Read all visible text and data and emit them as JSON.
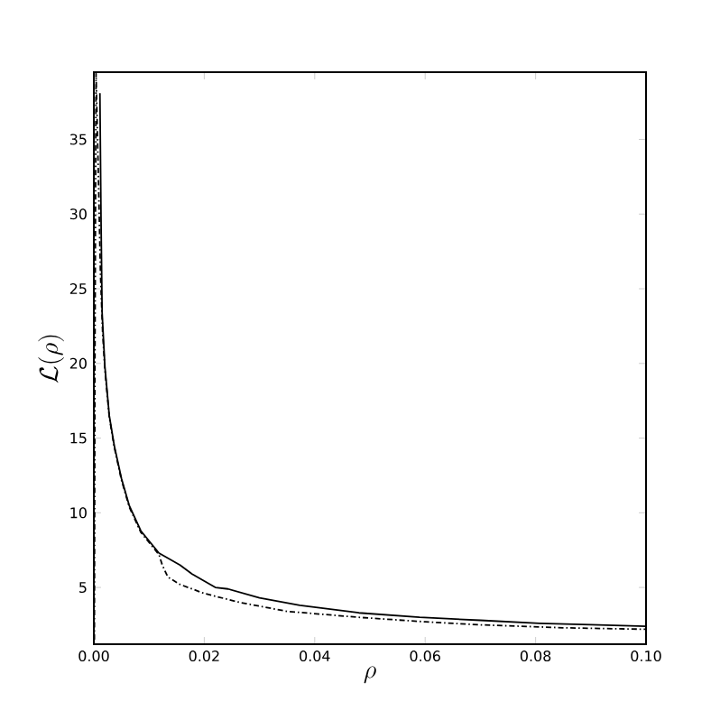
{
  "chart_data": {
    "type": "line",
    "xlabel": "\\rho",
    "ylabel": "\\mathcal{L}(\\rho)",
    "xlim": [
      0,
      0.1
    ],
    "ylim": [
      1.2,
      39.5
    ],
    "xticks": [
      {
        "value": 0,
        "label": "0.00"
      },
      {
        "value": 0.02,
        "label": "0.02"
      },
      {
        "value": 0.04,
        "label": "0.04"
      },
      {
        "value": 0.06,
        "label": "0.06"
      },
      {
        "value": 0.08,
        "label": "0.08"
      },
      {
        "value": 0.1,
        "label": "0.10"
      }
    ],
    "yticks": [
      5,
      10,
      15,
      20,
      25,
      30,
      35
    ],
    "grid": false,
    "marker": "none",
    "series": [
      {
        "color": "#000000",
        "line_style": "solid",
        "x": [
          0.0011,
          0.0013,
          0.0015,
          0.002,
          0.0028,
          0.0037,
          0.005,
          0.0064,
          0.0085,
          0.0118,
          0.0156,
          0.0178,
          0.022,
          0.0243,
          0.03,
          0.0373,
          0.048,
          0.059,
          0.07,
          0.0807,
          0.09,
          0.1
        ],
        "values": [
          38.1,
          29.8,
          23.4,
          19.8,
          16.5,
          14.5,
          12.3,
          10.5,
          8.8,
          7.3,
          6.5,
          5.9,
          5.0,
          4.9,
          4.3,
          3.8,
          3.3,
          3.0,
          2.8,
          2.6,
          2.5,
          2.4
        ]
      },
      {
        "color": "#000000",
        "line_style": "dashed",
        "x": [
          0.0001,
          0.0002,
          0.0003,
          0.0004,
          0.0008,
          0.0012,
          0.0016,
          0.002,
          0.0028,
          0.0037,
          0.005,
          0.0064,
          0.0085,
          0.0118,
          0.0124,
          0.0134,
          0.0156,
          0.02,
          0.0264,
          0.035,
          0.048,
          0.06,
          0.0698,
          0.085,
          0.1
        ],
        "values": [
          1.5,
          20,
          30,
          39.4,
          33,
          26,
          22,
          19.6,
          16.4,
          14.4,
          12.2,
          10.4,
          8.7,
          7.2,
          6.5,
          5.7,
          5.2,
          4.6,
          4.0,
          3.4,
          3.0,
          2.7,
          2.5,
          2.3,
          2.2
        ]
      }
    ]
  }
}
